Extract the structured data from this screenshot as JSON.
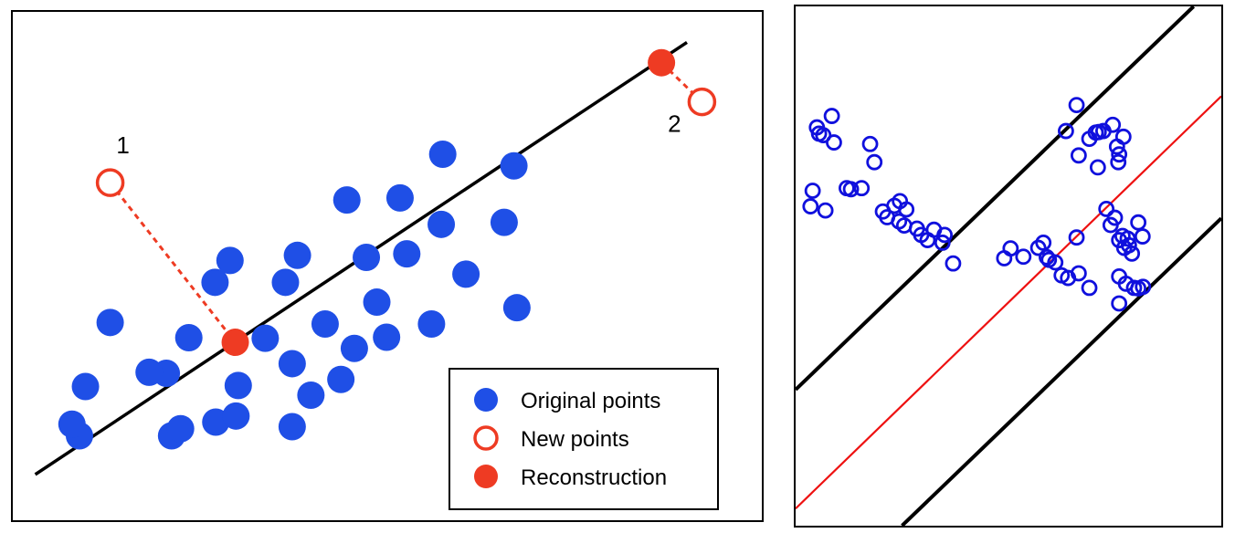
{
  "colors": {
    "original": "#1f4fe6",
    "new_point": "#ee3b23",
    "reconstruction": "#ee3b23",
    "line": "#000000",
    "right_points": "#1010dd",
    "right_center_line": "#ee1111"
  },
  "chart_data": [
    {
      "type": "scatter",
      "title": "",
      "xlabel": "",
      "ylabel": "",
      "grid": false,
      "axes_visible": false,
      "xlim": [
        0,
        100
      ],
      "ylim": [
        0,
        100
      ],
      "legend": {
        "placement": "bottom-right",
        "entries": [
          {
            "label": "Original points",
            "marker": "filled-circle"
          },
          {
            "label": "New points",
            "marker": "open-circle"
          },
          {
            "label": "Reconstruction",
            "marker": "filled-circle-red"
          }
        ]
      },
      "fit_line": {
        "x": [
          3,
          90
        ],
        "y": [
          9,
          94
        ]
      },
      "series": [
        {
          "name": "Original points",
          "marker": "filled",
          "points": [
            [
              23.5,
              35.9
            ],
            [
              27.0,
              46.8
            ],
            [
              9.7,
              26.3
            ],
            [
              13.0,
              38.9
            ],
            [
              20.5,
              28.9
            ],
            [
              27.1,
              19.3
            ],
            [
              33.7,
              35.8
            ],
            [
              37.3,
              30.8
            ],
            [
              39.8,
              24.6
            ],
            [
              41.7,
              38.6
            ],
            [
              43.8,
              27.7
            ],
            [
              45.6,
              33.8
            ],
            [
              48.6,
              42.9
            ],
            [
              49.9,
              36.0
            ],
            [
              52.6,
              52.4
            ],
            [
              55.9,
              38.6
            ],
            [
              57.4,
              72.0
            ],
            [
              57.2,
              58.2
            ],
            [
              60.5,
              48.4
            ],
            [
              66.9,
              69.7
            ],
            [
              65.6,
              58.6
            ],
            [
              67.3,
              41.8
            ],
            [
              38.0,
              52.1
            ],
            [
              47.2,
              51.7
            ],
            [
              44.6,
              63.0
            ],
            [
              51.7,
              63.4
            ],
            [
              29.0,
              51.1
            ],
            [
              36.4,
              46.8
            ],
            [
              8.9,
              16.6
            ],
            [
              7.9,
              18.9
            ],
            [
              21.2,
              16.6
            ],
            [
              29.8,
              20.5
            ],
            [
              37.3,
              18.4
            ],
            [
              18.2,
              29.1
            ],
            [
              30.1,
              26.5
            ],
            [
              22.4,
              18.0
            ]
          ]
        },
        {
          "name": "New points",
          "marker": "open",
          "points": [
            [
              13.0,
              66.4
            ],
            [
              92.0,
              82.3
            ]
          ],
          "labels": [
            "1",
            "2"
          ]
        },
        {
          "name": "Reconstruction",
          "marker": "filled",
          "points": [
            [
              29.7,
              35.0
            ],
            [
              86.6,
              90.0
            ]
          ]
        }
      ]
    },
    {
      "type": "scatter",
      "title": "",
      "xlabel": "",
      "ylabel": "",
      "grid": false,
      "axes_visible": false,
      "xlim": [
        0,
        100
      ],
      "ylim": [
        0,
        100
      ],
      "lines": [
        {
          "role": "center",
          "x": [
            0,
            100
          ],
          "y": [
            3.3,
            82.7
          ]
        },
        {
          "role": "upper",
          "x": [
            0,
            93.5
          ],
          "y": [
            26.2,
            100
          ]
        },
        {
          "role": "lower",
          "x": [
            25,
            100
          ],
          "y": [
            0,
            59.2
          ]
        }
      ],
      "series": [
        {
          "marker": "open",
          "points": [
            [
              63.5,
              76.0
            ],
            [
              66.0,
              81.0
            ],
            [
              69.0,
              74.5
            ],
            [
              70.5,
              75.7
            ],
            [
              71.2,
              75.8
            ],
            [
              72.3,
              76.0
            ],
            [
              74.5,
              77.2
            ],
            [
              75.5,
              73.0
            ],
            [
              77.0,
              74.9
            ],
            [
              76.0,
              71.5
            ],
            [
              75.8,
              70.0
            ],
            [
              71.0,
              69.0
            ],
            [
              66.5,
              71.3
            ],
            [
              73.0,
              61.0
            ],
            [
              75.0,
              59.3
            ],
            [
              74.0,
              57.9
            ],
            [
              76.0,
              55.0
            ],
            [
              77.2,
              53.5
            ],
            [
              78.3,
              54.0
            ],
            [
              78.0,
              55.3
            ],
            [
              76.8,
              55.8
            ],
            [
              79.0,
              52.4
            ],
            [
              81.5,
              55.7
            ],
            [
              80.5,
              58.4
            ],
            [
              76.0,
              48.0
            ],
            [
              77.6,
              46.6
            ],
            [
              79.5,
              45.8
            ],
            [
              80.5,
              45.7
            ],
            [
              81.6,
              46.0
            ],
            [
              76.0,
              42.8
            ],
            [
              69.0,
              45.8
            ],
            [
              66.5,
              48.6
            ],
            [
              62.5,
              48.2
            ],
            [
              64.0,
              47.7
            ],
            [
              59.5,
              51.2
            ],
            [
              53.5,
              51.8
            ],
            [
              49.0,
              51.5
            ],
            [
              50.5,
              53.4
            ],
            [
              66.0,
              55.5
            ],
            [
              57.0,
              53.5
            ],
            [
              59.0,
              51.7
            ],
            [
              61.0,
              50.7
            ],
            [
              58.2,
              54.5
            ],
            [
              37.0,
              50.5
            ],
            [
              28.5,
              57.2
            ],
            [
              29.5,
              56.0
            ],
            [
              31.0,
              55.0
            ],
            [
              34.5,
              54.5
            ],
            [
              35.0,
              56.0
            ],
            [
              32.5,
              57.0
            ],
            [
              25.5,
              57.8
            ],
            [
              24.3,
              58.6
            ],
            [
              21.5,
              59.4
            ],
            [
              20.5,
              60.5
            ],
            [
              26.0,
              60.9
            ],
            [
              24.5,
              62.5
            ],
            [
              23.2,
              61.6
            ],
            [
              15.5,
              65.0
            ],
            [
              13.0,
              64.8
            ],
            [
              12.0,
              65.0
            ],
            [
              3.5,
              61.5
            ],
            [
              7.0,
              60.7
            ],
            [
              4.0,
              64.5
            ],
            [
              18.5,
              70.0
            ],
            [
              17.5,
              73.5
            ],
            [
              9.0,
              73.8
            ],
            [
              6.5,
              75.2
            ],
            [
              5.0,
              76.7
            ],
            [
              5.5,
              75.5
            ],
            [
              8.5,
              78.9
            ]
          ]
        }
      ]
    }
  ]
}
